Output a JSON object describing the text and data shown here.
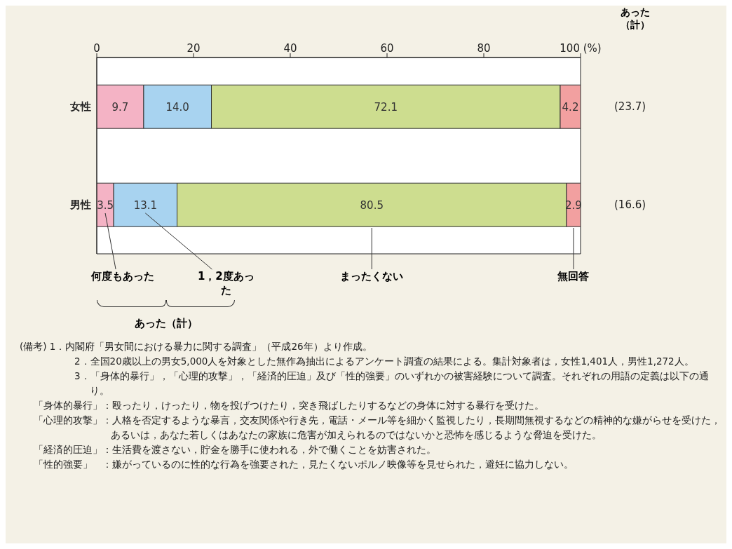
{
  "chart_data": {
    "type": "bar",
    "orientation": "horizontal",
    "stacked": true,
    "categories": [
      "女性",
      "男性"
    ],
    "series": [
      {
        "name": "何度もあった",
        "color": "#f4b3c5",
        "values": [
          9.7,
          3.5
        ]
      },
      {
        "name": "1，2度あった",
        "color": "#a8d3f0",
        "values": [
          14.0,
          13.1
        ]
      },
      {
        "name": "まったくない",
        "color": "#cddd8f",
        "values": [
          72.1,
          80.5
        ]
      },
      {
        "name": "無回答",
        "color": "#f2a0a0",
        "values": [
          4.2,
          2.9
        ]
      }
    ],
    "xlim": [
      0,
      100
    ],
    "xticks": [
      0,
      20,
      40,
      60,
      80,
      {
        "value": 100,
        "label": "100 (%)"
      }
    ],
    "value_labels": [
      [
        "9.7",
        "3.5"
      ],
      [
        "14.0",
        "13.1"
      ],
      [
        "72.1",
        "80.5"
      ],
      [
        "4.2",
        "2.9"
      ]
    ],
    "annotations": [
      "あった（計）",
      "あった（計）",
      "(23.7)",
      "(16.6)",
      "(備考) 1．内閣府「男女間における暴力に関する調査」（平成26年）より作成。",
      "2．全国20歳以上の男女5,000人を対象とした無作為抽出によるアンケート調査の結果による。集計対象者は，女性1,401人，男性1,272人。",
      "3．「身体的暴行」，「心理的攻撃」，「経済的圧迫」及び「性的強要」のいずれかの被害経験について調査。それぞれの用語の定義は以下の通り。",
      "「身体的暴行」：殴ったり，けったり，物を投げつけたり，突き飛ばしたりするなどの身体に対する暴行を受けた。",
      "「心理的攻撃」：人格を否定するような暴言，交友関係や行き先，電話・メール等を細かく監視したり，長期間無視するなどの精神的な嫌がらせを受けた，あるいは，あなた若しくはあなたの家族に危害が加えられるのではないかと恐怖を感じるような脅迫を受けた。",
      "「経済的圧迫」：生活費を渡さない，貯金を勝手に使われる，外で働くことを妨害された。",
      "「性的強要」　：嫌がっているのに性的な行為を強要された，見たくないポルノ映像等を見せられた，避妊に協力しない。"
    ]
  }
}
